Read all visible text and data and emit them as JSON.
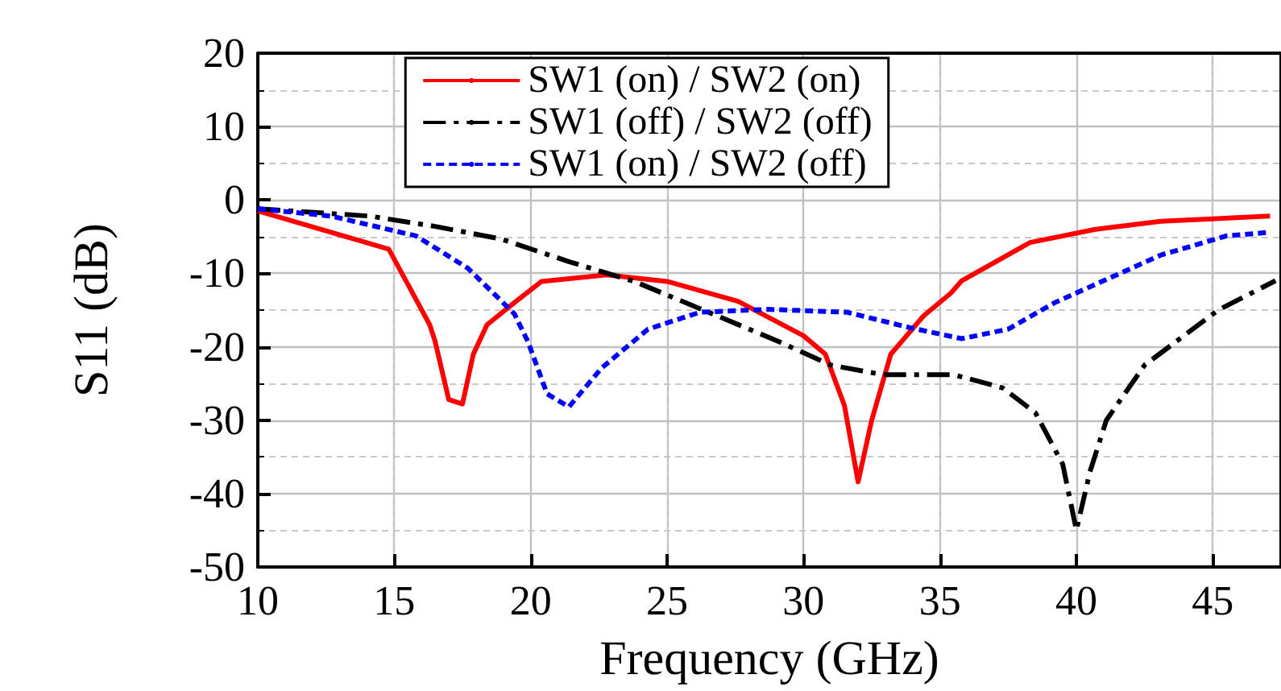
{
  "chart_data": {
    "type": "line",
    "xlabel": "Frequency (GHz)",
    "ylabel": "S11 (dB)",
    "xlim": [
      10,
      47.5
    ],
    "xticks": [
      10,
      15,
      20,
      25,
      30,
      35,
      40,
      45
    ],
    "ylim": [
      -50,
      20
    ],
    "yticks": [
      -50,
      -40,
      -30,
      -20,
      -10,
      0,
      10,
      20
    ],
    "grid": true,
    "legend": "top",
    "marker": "none",
    "series": [
      {
        "name": "SW1 (on) / SW2 (on)",
        "color": "#ff0000",
        "line_style": "solid",
        "x": [
          10,
          14.8,
          16.3,
          16.5,
          17.0,
          17.5,
          17.9,
          18.4,
          19.4,
          20.4,
          22.8,
          25,
          27.6,
          30,
          30.8,
          31.5,
          32,
          32.5,
          33.2,
          34.4,
          35.4,
          35.8,
          38.3,
          40.7,
          43.1,
          47.1
        ],
        "values": [
          -1.5,
          -6.7,
          -17,
          -19.3,
          -27.2,
          -27.8,
          -21,
          -17,
          -14,
          -11.1,
          -10.2,
          -11.1,
          -13.8,
          -18.5,
          -21,
          -28,
          -38.4,
          -30,
          -21,
          -15.8,
          -12.7,
          -11,
          -5.8,
          -4,
          -2.9,
          -2.2
        ]
      },
      {
        "name": "SW1 (off) / SW2 (off)",
        "color": "#000000",
        "line_style": "dashed",
        "x": [
          10,
          14.1,
          16.5,
          18.9,
          21.4,
          23.8,
          26.2,
          29.1,
          31.0,
          32.9,
          35.5,
          37.3,
          38.5,
          39.5,
          40,
          40.5,
          41.1,
          42.5,
          45.2,
          47.3
        ],
        "values": [
          -1.2,
          -2.2,
          -3.6,
          -5.3,
          -8.4,
          -11.1,
          -14.8,
          -19.3,
          -22.5,
          -23.8,
          -23.8,
          -25.6,
          -29,
          -36,
          -45,
          -37,
          -30,
          -22.5,
          -15,
          -11
        ]
      },
      {
        "name": "SW1 (on) / SW2 (off)",
        "color": "#0000ff",
        "line_style": "dotted",
        "x": [
          10,
          12.7,
          15.8,
          17.7,
          19.4,
          19.9,
          20.6,
          21.4,
          22.6,
          24.3,
          26.2,
          28.7,
          31.6,
          33.9,
          35.8,
          37.5,
          39.2,
          40.4,
          43.1,
          45.5,
          47.1
        ],
        "values": [
          -1.2,
          -2.2,
          -4.9,
          -9.3,
          -15.5,
          -19.3,
          -26.4,
          -28.2,
          -22.9,
          -17.6,
          -15.3,
          -14.9,
          -15.3,
          -17.4,
          -18.9,
          -17.6,
          -14,
          -12,
          -7.5,
          -4.9,
          -4.4
        ]
      }
    ]
  }
}
